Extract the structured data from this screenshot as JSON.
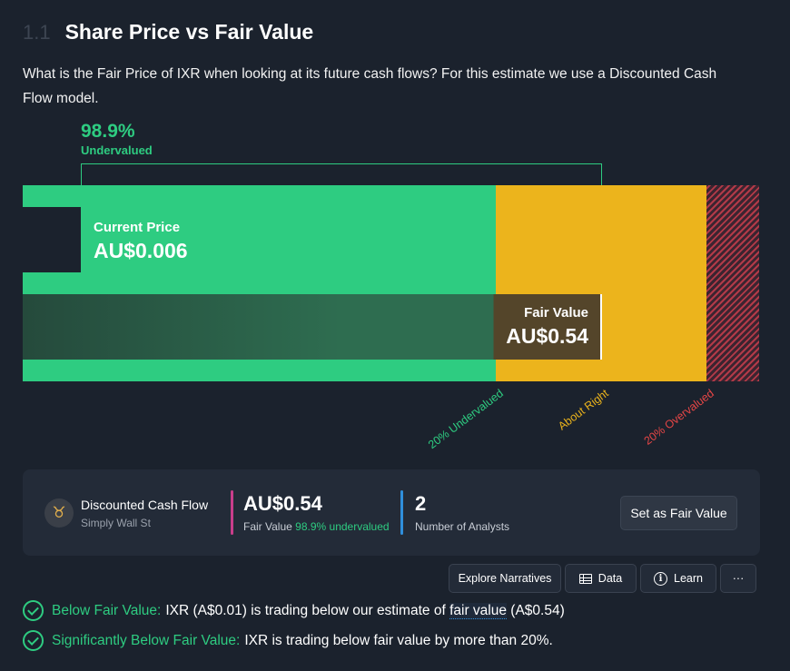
{
  "section": {
    "number": "1.1",
    "title": "Share Price vs Fair Value"
  },
  "intro": "What is the Fair Price of IXR when looking at its future cash flows? For this estimate we use a Discounted Cash Flow model.",
  "valuation_chart": {
    "difference_pct": "98.9%",
    "difference_label": "Undervalued",
    "current_price": {
      "label": "Current Price",
      "value": "AU$0.006"
    },
    "fair_value": {
      "label": "Fair Value",
      "value": "AU$0.54"
    },
    "zones": [
      {
        "label": "20% Undervalued",
        "color": "#2ecc81"
      },
      {
        "label": "About Right",
        "color": "#ecb41c"
      },
      {
        "label": "20% Overvalued",
        "color": "#e64646"
      }
    ]
  },
  "model_card": {
    "model_name": "Discounted Cash Flow",
    "source": "Simply Wall St",
    "avatar_icon": "bull-logo-icon",
    "fair_value": "AU$0.54",
    "fair_value_sub_label": "Fair Value",
    "fair_value_sub_pct": "98.9% undervalued",
    "analysts_count": "2",
    "analysts_label": "Number of Analysts",
    "set_button": "Set as Fair Value"
  },
  "toolbar": {
    "explore": "Explore Narratives",
    "data": "Data",
    "learn": "Learn",
    "more": "···"
  },
  "checks": [
    {
      "title": "Below Fair Value:",
      "text_before": "IXR (A$0.01) is trading below our estimate of",
      "link": "fair value",
      "text_after": "(A$0.54)"
    },
    {
      "title": "Significantly Below Fair Value:",
      "text": "IXR is trading below fair value by more than 20%."
    }
  ],
  "colors": {
    "accent_green": "#2ecc81",
    "accent_yellow": "#ecb41c",
    "accent_red": "#e64646",
    "background": "#1b222d"
  }
}
